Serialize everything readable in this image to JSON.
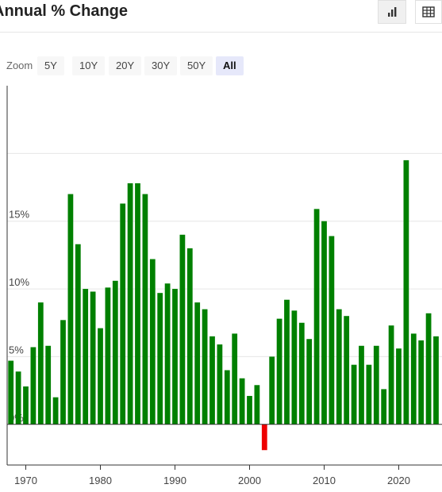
{
  "header": {
    "title": "Annual % Change",
    "bar_view_icon": "bar-chart-icon",
    "table_view_icon": "table-icon"
  },
  "zoom": {
    "label": "Zoom",
    "options": [
      "5Y",
      "10Y",
      "20Y",
      "30Y",
      "50Y",
      "All"
    ],
    "selected": "All"
  },
  "colors": {
    "positive": "#008000",
    "negative": "#ee0000",
    "grid": "#e6e6e6",
    "axis": "#333333",
    "active_zoom": "#e6e8fa"
  },
  "chart_data": {
    "type": "bar",
    "title": "Annual % Change",
    "xlabel": "",
    "ylabel": "",
    "x": [
      1968,
      1969,
      1970,
      1971,
      1972,
      1973,
      1974,
      1975,
      1976,
      1977,
      1978,
      1979,
      1980,
      1981,
      1982,
      1983,
      1984,
      1985,
      1986,
      1987,
      1988,
      1989,
      1990,
      1991,
      1992,
      1993,
      1994,
      1995,
      1996,
      1997,
      1998,
      1999,
      2000,
      2001,
      2002,
      2003,
      2004,
      2005,
      2006,
      2007,
      2008,
      2009,
      2010,
      2011,
      2012,
      2013,
      2014,
      2015,
      2016,
      2017,
      2018,
      2019,
      2020,
      2021,
      2022,
      2023,
      2024,
      2025
    ],
    "values": [
      4.7,
      3.9,
      2.8,
      5.7,
      9.0,
      5.8,
      2.0,
      7.7,
      17.0,
      13.3,
      10.0,
      9.8,
      7.1,
      10.1,
      10.6,
      16.3,
      17.8,
      17.8,
      17.0,
      12.2,
      9.7,
      10.4,
      10.0,
      14.0,
      13.0,
      9.0,
      8.5,
      6.5,
      5.9,
      4.0,
      6.7,
      3.4,
      2.1,
      2.9,
      -1.9,
      5.0,
      7.8,
      9.2,
      8.4,
      7.5,
      6.3,
      15.9,
      15.0,
      13.9,
      8.5,
      8.0,
      4.4,
      5.8,
      4.4,
      5.8,
      2.6,
      7.3,
      5.6,
      19.5,
      6.7,
      6.2,
      8.2,
      6.5
    ],
    "ylim": [
      -3.0,
      25.0
    ],
    "yticks": [
      0,
      5,
      10,
      15
    ],
    "ytick_labels": [
      "0%",
      "5%",
      "10%",
      "15%"
    ],
    "xticks": [
      1970,
      1980,
      1990,
      2000,
      2010,
      2020
    ],
    "xtick_labels": [
      "1970",
      "1980",
      "1990",
      "2000",
      "2010",
      "2020"
    ],
    "xlim": [
      1967.5,
      2025.8
    ],
    "grid": true,
    "legend": "none"
  }
}
